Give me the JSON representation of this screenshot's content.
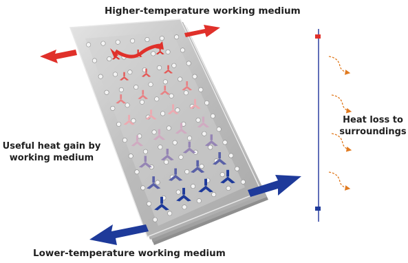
{
  "labels": {
    "top": "Higher-temperature working medium",
    "bottom": "Lower-temperature working medium",
    "left": "Useful heat gain by working medium",
    "right": "Heat loss to surroundings"
  },
  "colors": {
    "hot": "#e0302a",
    "cold": "#1e3a9a",
    "loss_arrow": "#e07a20",
    "plate": "#c9c9c9"
  }
}
